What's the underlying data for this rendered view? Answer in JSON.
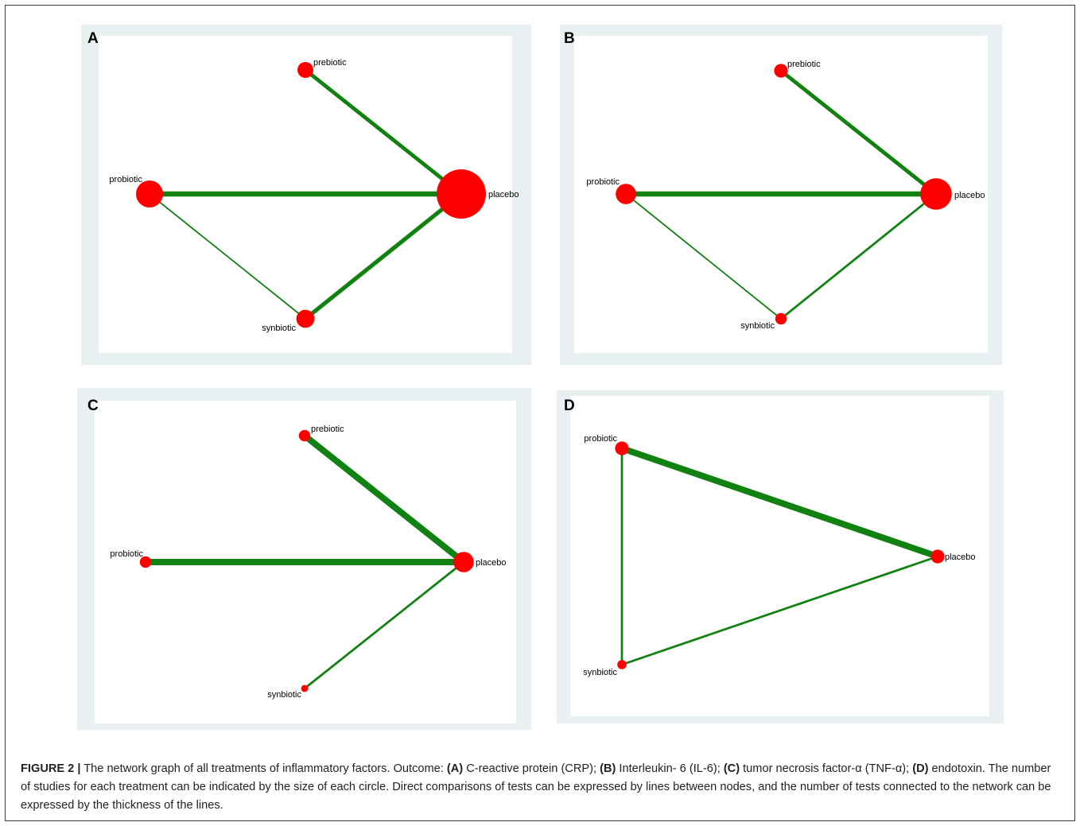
{
  "colors": {
    "panel_border": "#e8f0f2",
    "edge": "#118211",
    "node": "#ff0000"
  },
  "panels": [
    {
      "id": "A",
      "letter": "A",
      "nodes": [
        {
          "id": "prebiotic",
          "label": "prebiotic",
          "size": 0.25
        },
        {
          "id": "probiotic",
          "label": "probiotic",
          "size": 0.5
        },
        {
          "id": "placebo",
          "label": "placebo",
          "size": 1.0
        },
        {
          "id": "synbiotic",
          "label": "synbiotic",
          "size": 0.3
        }
      ],
      "edges": [
        {
          "from": "prebiotic",
          "to": "placebo",
          "weight": 0.55
        },
        {
          "from": "probiotic",
          "to": "placebo",
          "weight": 0.8
        },
        {
          "from": "probiotic",
          "to": "synbiotic",
          "weight": 0.12
        },
        {
          "from": "synbiotic",
          "to": "placebo",
          "weight": 0.6
        }
      ]
    },
    {
      "id": "B",
      "letter": "B",
      "nodes": [
        {
          "id": "prebiotic",
          "label": "prebiotic",
          "size": 0.2
        },
        {
          "id": "probiotic",
          "label": "probiotic",
          "size": 0.35
        },
        {
          "id": "placebo",
          "label": "placebo",
          "size": 0.6
        },
        {
          "id": "synbiotic",
          "label": "synbiotic",
          "size": 0.15
        }
      ],
      "edges": [
        {
          "from": "prebiotic",
          "to": "placebo",
          "weight": 0.55
        },
        {
          "from": "probiotic",
          "to": "placebo",
          "weight": 0.8
        },
        {
          "from": "probiotic",
          "to": "synbiotic",
          "weight": 0.12
        },
        {
          "from": "synbiotic",
          "to": "placebo",
          "weight": 0.25
        }
      ]
    },
    {
      "id": "C",
      "letter": "C",
      "nodes": [
        {
          "id": "prebiotic",
          "label": "prebiotic",
          "size": 0.15
        },
        {
          "id": "probiotic",
          "label": "probiotic",
          "size": 0.15
        },
        {
          "id": "placebo",
          "label": "placebo",
          "size": 0.35
        },
        {
          "id": "synbiotic",
          "label": "synbiotic",
          "size": 0.05
        }
      ],
      "edges": [
        {
          "from": "prebiotic",
          "to": "placebo",
          "weight": 1.0
        },
        {
          "from": "probiotic",
          "to": "placebo",
          "weight": 1.0
        },
        {
          "from": "synbiotic",
          "to": "placebo",
          "weight": 0.25
        }
      ]
    },
    {
      "id": "D",
      "letter": "D",
      "nodes": [
        {
          "id": "probiotic",
          "label": "probiotic",
          "size": 0.2
        },
        {
          "id": "placebo",
          "label": "placebo",
          "size": 0.2
        },
        {
          "id": "synbiotic",
          "label": "synbiotic",
          "size": 0.1
        }
      ],
      "edges": [
        {
          "from": "probiotic",
          "to": "placebo",
          "weight": 1.0
        },
        {
          "from": "probiotic",
          "to": "synbiotic",
          "weight": 0.25
        },
        {
          "from": "synbiotic",
          "to": "placebo",
          "weight": 0.25
        }
      ]
    }
  ],
  "caption": {
    "label": "FIGURE 2 |",
    "intro": " The network graph of all treatments of inflammatory factors. Outcome: ",
    "a_tag": "(A)",
    "a_text": " C-reactive protein (CRP); ",
    "b_tag": "(B)",
    "b_text": " Interleukin- 6 (IL-6); ",
    "c_tag": "(C)",
    "c_text": " tumor necrosis factor-α (TNF-α); ",
    "d_tag": "(D)",
    "d_text": " endotoxin. The number of studies for each treatment can be indicated by the size of each circle. Direct comparisons of tests can be expressed by lines between nodes, and the number of tests connected to the network can be expressed by the thickness of the lines."
  }
}
